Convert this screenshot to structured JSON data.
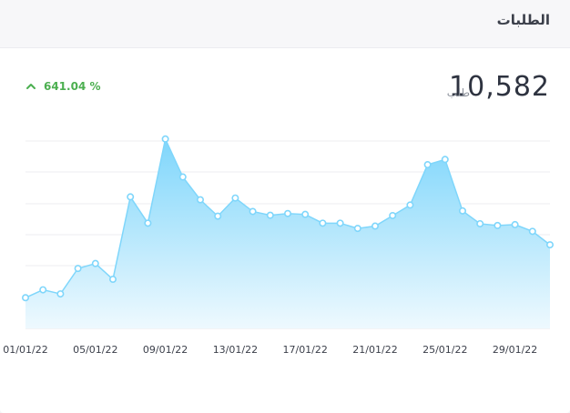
{
  "header": {
    "title": "الطلبات"
  },
  "stat": {
    "value": "10,582",
    "unit": "طلب",
    "growth": "641.04 %"
  },
  "colors": {
    "line": "#7fd6fb",
    "area_top": "#7fd6fb",
    "area_bottom": "#eef9fe",
    "growth": "#4caf50",
    "grid": "#ececf0"
  },
  "chart_data": {
    "type": "area",
    "x": [
      "01/01/22",
      "02/01/22",
      "03/01/22",
      "04/01/22",
      "05/01/22",
      "06/01/22",
      "07/01/22",
      "08/01/22",
      "09/01/22",
      "10/01/22",
      "11/01/22",
      "12/01/22",
      "13/01/22",
      "14/01/22",
      "15/01/22",
      "16/01/22",
      "17/01/22",
      "18/01/22",
      "19/01/22",
      "20/01/22",
      "21/01/22",
      "22/01/22",
      "23/01/22",
      "24/01/22",
      "25/01/22",
      "26/01/22",
      "27/01/22",
      "28/01/22",
      "29/01/22",
      "30/01/22",
      "31/01/22"
    ],
    "tick_labels": [
      "01/01/22",
      "05/01/22",
      "09/01/22",
      "13/01/22",
      "17/01/22",
      "21/01/22",
      "25/01/22",
      "29/01/22"
    ],
    "values": [
      105,
      132,
      118,
      205,
      222,
      168,
      450,
      360,
      648,
      518,
      440,
      384,
      446,
      400,
      387,
      393,
      390,
      360,
      360,
      342,
      350,
      386,
      422,
      560,
      578,
      402,
      358,
      352,
      355,
      332,
      286
    ],
    "ylim": [
      0,
      750
    ],
    "grid": true,
    "legend": "none"
  }
}
